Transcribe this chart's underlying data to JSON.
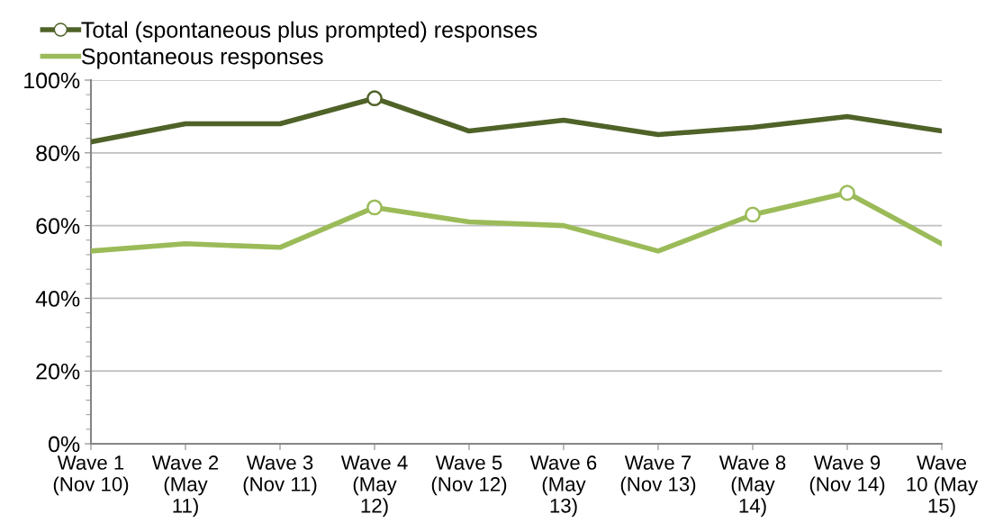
{
  "chart_data": {
    "type": "line",
    "categories": [
      "Wave 1\n(Nov 10)",
      "Wave 2\n(May\n11)",
      "Wave 3\n(Nov 11)",
      "Wave 4\n(May\n12)",
      "Wave 5\n(Nov 12)",
      "Wave 6\n(May\n13)",
      "Wave 7\n(Nov 13)",
      "Wave 8\n(May\n14)",
      "Wave 9\n(Nov 14)",
      "Wave\n10 (May\n15)"
    ],
    "series": [
      {
        "name": "Total (spontaneous plus prompted) responses",
        "color": "#4f6228",
        "values": [
          83,
          88,
          88,
          95,
          86,
          89,
          85,
          87,
          90,
          86
        ],
        "marker": [
          "none",
          "none",
          "none",
          "circle",
          "none",
          "none",
          "none",
          "none",
          "none",
          "none"
        ]
      },
      {
        "name": "Spontaneous responses",
        "color": "#9bbb59",
        "values": [
          53,
          55,
          54,
          65,
          61,
          60,
          53,
          63,
          69,
          55
        ],
        "marker": [
          "none",
          "none",
          "none",
          "circle",
          "none",
          "none",
          "none",
          "circle",
          "circle",
          "none"
        ]
      }
    ],
    "ylim": [
      0,
      100
    ],
    "yticks": [
      {
        "value": 0,
        "label": "0%"
      },
      {
        "value": 20,
        "label": "20%"
      },
      {
        "value": 40,
        "label": "40%"
      },
      {
        "value": 60,
        "label": "60%"
      },
      {
        "value": 80,
        "label": "80%"
      },
      {
        "value": 100,
        "label": "100%"
      }
    ],
    "grid": "y",
    "legend": "top left",
    "line_style": "solid"
  }
}
